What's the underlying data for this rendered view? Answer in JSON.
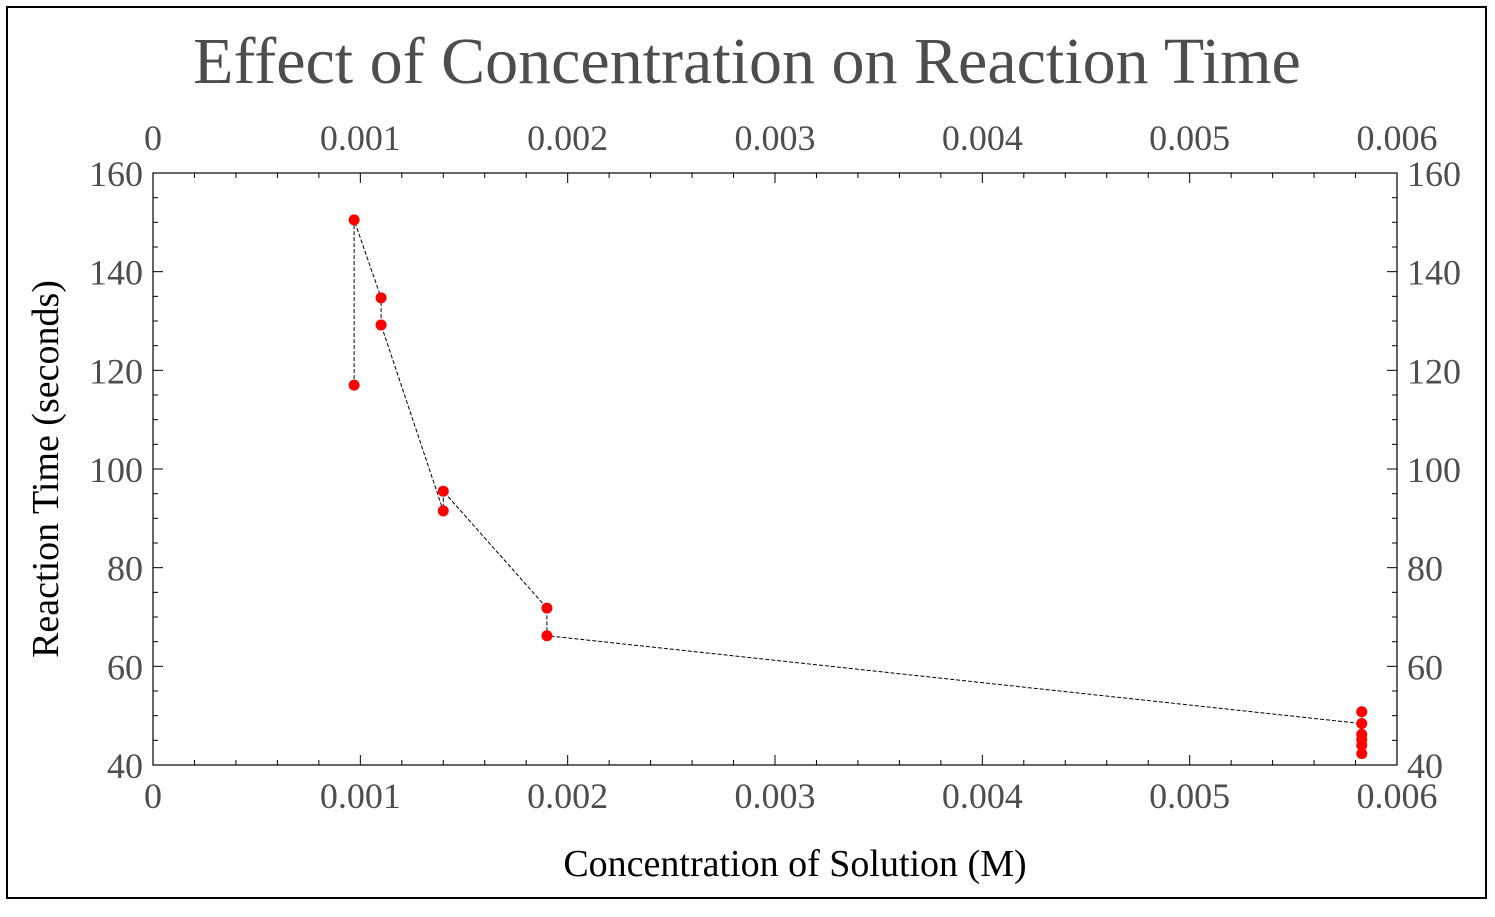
{
  "chart_data": {
    "type": "scatter",
    "title": "Effect of Concentration on Reaction Time",
    "xlabel": "Concentration of Solution (M)",
    "ylabel": "Reaction Time (seconds)",
    "xlim": [
      0,
      0.006
    ],
    "ylim": [
      40,
      160
    ],
    "x_ticks": [
      "0",
      "0.001",
      "0.002",
      "0.003",
      "0.004",
      "0.005",
      "0.006"
    ],
    "y_ticks": [
      "40",
      "60",
      "80",
      "100",
      "120",
      "140",
      "160"
    ],
    "grid": false,
    "mirror_axes": true,
    "marker_color": "#ff0000",
    "line_color": "#000000",
    "line_style": "dashed",
    "points": [
      {
        "x": 0.00097,
        "y": 117
      },
      {
        "x": 0.00097,
        "y": 150.5
      },
      {
        "x": 0.0011,
        "y": 134.7
      },
      {
        "x": 0.0011,
        "y": 129.2
      },
      {
        "x": 0.0014,
        "y": 91.5
      },
      {
        "x": 0.0014,
        "y": 95.5
      },
      {
        "x": 0.0019,
        "y": 71.8
      },
      {
        "x": 0.0019,
        "y": 66.2
      },
      {
        "x": 0.00583,
        "y": 48.4
      },
      {
        "x": 0.00583,
        "y": 42.3
      },
      {
        "x": 0.00583,
        "y": 44
      },
      {
        "x": 0.00583,
        "y": 45.2
      },
      {
        "x": 0.00583,
        "y": 46.2
      },
      {
        "x": 0.00583,
        "y": 50.8
      }
    ]
  }
}
